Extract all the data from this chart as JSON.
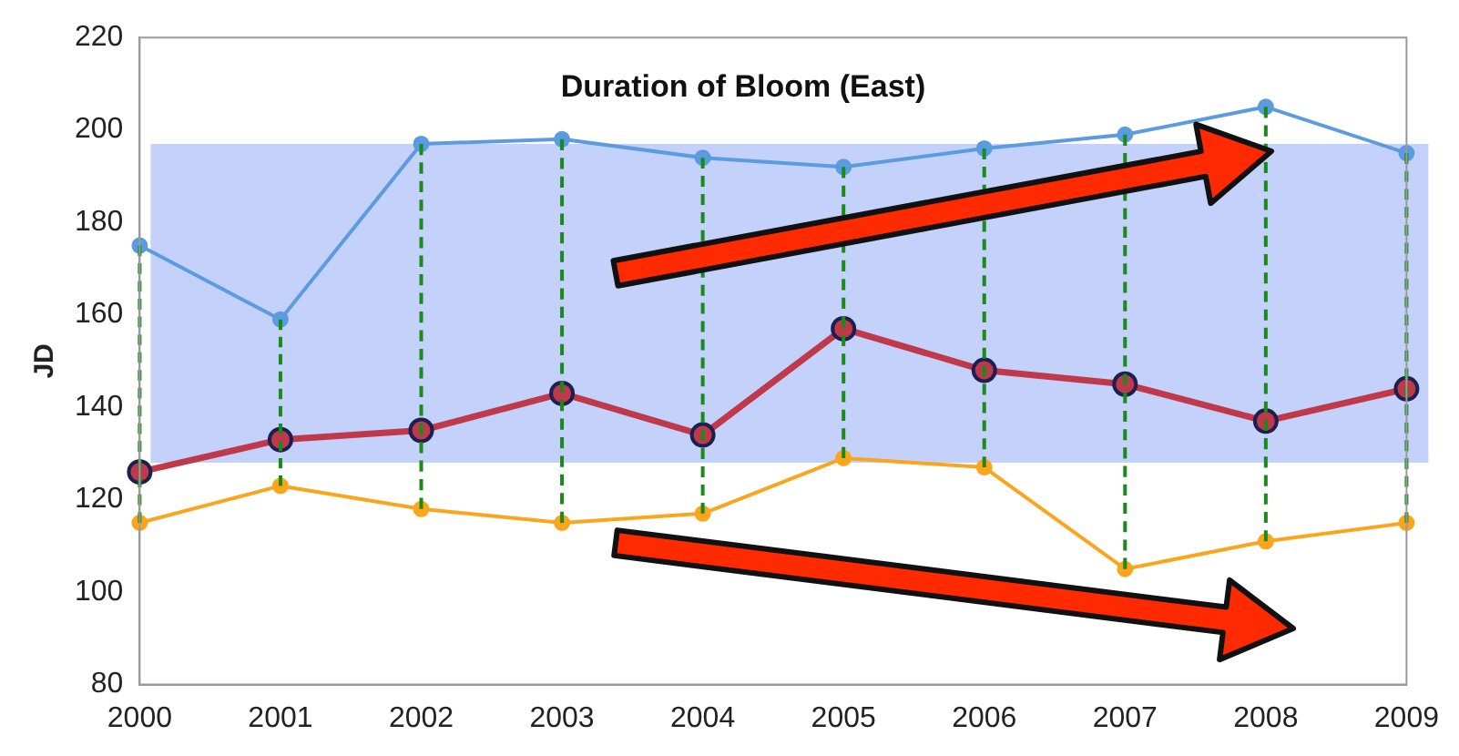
{
  "chart_data": {
    "type": "line",
    "title": "Duration of Bloom (East)",
    "ylabel": "JD",
    "categories": [
      "2000",
      "2001",
      "2002",
      "2003",
      "2004",
      "2005",
      "2006",
      "2007",
      "2008",
      "2009"
    ],
    "series": [
      {
        "color": "#5b9bdf",
        "values": [
          175,
          159,
          197,
          198,
          194,
          192,
          196,
          199,
          205,
          195
        ],
        "errors": [
          [
            115,
            175
          ],
          [
            123,
            159
          ],
          [
            118,
            197
          ],
          [
            115,
            198
          ],
          [
            117,
            194
          ],
          [
            129,
            192
          ],
          [
            127,
            196
          ],
          [
            105,
            199
          ],
          [
            111,
            205
          ],
          [
            115,
            195
          ]
        ]
      },
      {
        "color": "#c0394b",
        "values": [
          126,
          133,
          135,
          143,
          134,
          157,
          148,
          145,
          137,
          144
        ]
      },
      {
        "color": "#fba51c",
        "values": [
          115,
          123,
          118,
          115,
          117,
          129,
          127,
          105,
          111,
          115
        ]
      }
    ],
    "ylim": [
      80,
      220
    ],
    "yticks": [
      80,
      100,
      120,
      140,
      160,
      180,
      200,
      220
    ],
    "bands": [
      {
        "axis": "y",
        "from": 128,
        "to": 197,
        "color": "#c3d1fb"
      }
    ],
    "grid": false,
    "legend": false,
    "marker": "circle"
  }
}
